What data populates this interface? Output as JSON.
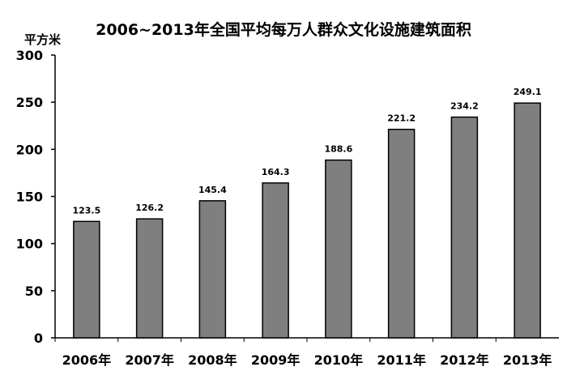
{
  "chart_data": {
    "type": "bar",
    "title": "2006~2013年全国平均每万人群众文化设施建筑面积",
    "ylabel": "平方米",
    "xlabel": "",
    "categories": [
      "2006年",
      "2007年",
      "2008年",
      "2009年",
      "2010年",
      "2011年",
      "2012年",
      "2013年"
    ],
    "values": [
      123.5,
      126.2,
      145.4,
      164.3,
      188.6,
      221.2,
      234.2,
      249.1
    ],
    "ylim": [
      0,
      300
    ],
    "yticks": [
      0,
      50,
      100,
      150,
      200,
      250,
      300
    ],
    "grid": false,
    "legend": "none",
    "colors": {
      "bar_fill": "#7f7f7f",
      "bar_stroke": "#000000",
      "axis": "#000000",
      "text": "#000000"
    }
  }
}
